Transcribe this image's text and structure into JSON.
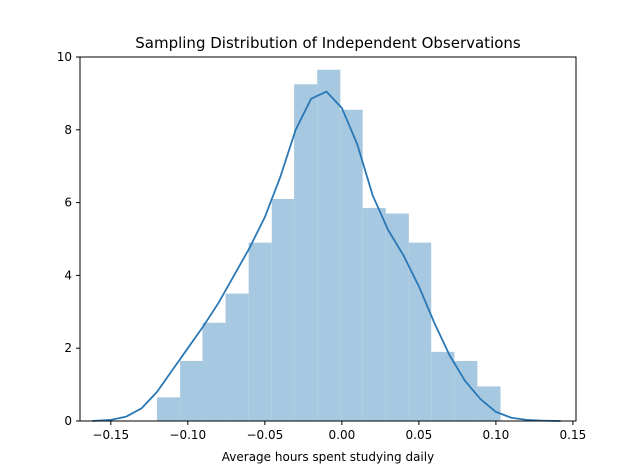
{
  "chart_data": {
    "type": "histogram",
    "title": "Sampling Distribution of Independent Observations",
    "xlabel": "Average hours spent studying daily",
    "ylabel": "",
    "xlim": [
      -0.17,
      0.152
    ],
    "ylim": [
      0,
      10
    ],
    "x_ticks": [
      -0.15,
      -0.1,
      -0.05,
      0.0,
      0.05,
      0.1,
      0.15
    ],
    "x_tick_labels": [
      "−0.15",
      "−0.10",
      "−0.05",
      "0.00",
      "0.05",
      "0.10",
      "0.15"
    ],
    "y_ticks": [
      0,
      2,
      4,
      6,
      8,
      10
    ],
    "y_tick_labels": [
      "0",
      "2",
      "4",
      "6",
      "8",
      "10"
    ],
    "grid": false,
    "bins": [
      {
        "x0": -0.12,
        "x1": -0.105,
        "density": 0.65
      },
      {
        "x0": -0.105,
        "x1": -0.0905,
        "density": 1.65
      },
      {
        "x0": -0.0905,
        "x1": -0.0755,
        "density": 2.7
      },
      {
        "x0": -0.0755,
        "x1": -0.0605,
        "density": 3.5
      },
      {
        "x0": -0.0605,
        "x1": -0.0455,
        "density": 4.9
      },
      {
        "x0": -0.0455,
        "x1": -0.031,
        "density": 6.1
      },
      {
        "x0": -0.031,
        "x1": -0.016,
        "density": 9.25
      },
      {
        "x0": -0.016,
        "x1": -0.001,
        "density": 9.65
      },
      {
        "x0": -0.001,
        "x1": 0.0135,
        "density": 8.55
      },
      {
        "x0": 0.0135,
        "x1": 0.0285,
        "density": 5.85
      },
      {
        "x0": 0.0285,
        "x1": 0.0435,
        "density": 5.7
      },
      {
        "x0": 0.0435,
        "x1": 0.058,
        "density": 4.9
      },
      {
        "x0": 0.058,
        "x1": 0.073,
        "density": 1.9
      },
      {
        "x0": 0.073,
        "x1": 0.088,
        "density": 1.65
      },
      {
        "x0": 0.088,
        "x1": 0.103,
        "density": 0.95
      }
    ],
    "kde": {
      "x": [
        -0.162,
        -0.15,
        -0.14,
        -0.13,
        -0.12,
        -0.11,
        -0.1,
        -0.09,
        -0.08,
        -0.07,
        -0.06,
        -0.05,
        -0.04,
        -0.03,
        -0.02,
        -0.01,
        0.0,
        0.01,
        0.02,
        0.03,
        0.04,
        0.05,
        0.06,
        0.07,
        0.08,
        0.09,
        0.1,
        0.11,
        0.12,
        0.13,
        0.142
      ],
      "y": [
        0.0,
        0.03,
        0.12,
        0.35,
        0.8,
        1.4,
        2.0,
        2.6,
        3.25,
        4.0,
        4.75,
        5.6,
        6.7,
        8.0,
        8.85,
        9.05,
        8.6,
        7.6,
        6.2,
        5.25,
        4.55,
        3.7,
        2.7,
        1.8,
        1.1,
        0.6,
        0.25,
        0.09,
        0.03,
        0.01,
        0.0
      ]
    },
    "bar_color": "#a6c8e0",
    "line_color": "#2a78b5"
  }
}
